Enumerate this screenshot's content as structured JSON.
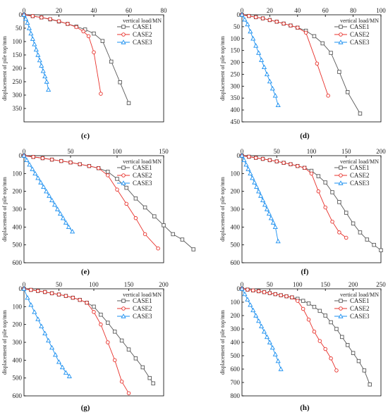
{
  "legend_labels": [
    "CASE1",
    "CASE2",
    "CASE3"
  ],
  "series_colors": [
    "#595959",
    "#e8312b",
    "#1a8ff0"
  ],
  "series_markers": [
    "square",
    "circle",
    "triangle"
  ],
  "chart_data": [
    {
      "type": "line",
      "panel_label": "(c)",
      "xlabel": "vertical load/MN",
      "ylabel": "displacement of pile top/mm",
      "xlim": [
        0,
        80
      ],
      "xticks": [
        0,
        20,
        40,
        60,
        80
      ],
      "ylim": [
        0,
        400
      ],
      "yticks": [
        0,
        50,
        100,
        150,
        200,
        250,
        300,
        350
      ],
      "y_inverted": true,
      "x_axis_position": "top",
      "legend_position": "top-right",
      "series": [
        {
          "name": "CASE1",
          "x": [
            0,
            5,
            10,
            15,
            20,
            25,
            30,
            35,
            40,
            45,
            50,
            55,
            60
          ],
          "y": [
            0,
            5,
            10,
            17,
            25,
            34,
            44,
            55,
            70,
            98,
            175,
            252,
            330
          ]
        },
        {
          "name": "CASE2",
          "x": [
            0,
            5,
            10,
            15,
            20,
            25,
            30,
            34,
            37,
            40,
            44
          ],
          "y": [
            0,
            5,
            10,
            16,
            24,
            34,
            46,
            62,
            80,
            140,
            295
          ]
        },
        {
          "name": "CASE3",
          "x": [
            0,
            1,
            2,
            3,
            4,
            5,
            6,
            7,
            8,
            9,
            10,
            11,
            12,
            13,
            14
          ],
          "y": [
            0,
            15,
            30,
            50,
            70,
            90,
            110,
            130,
            150,
            170,
            190,
            210,
            230,
            250,
            280
          ]
        }
      ]
    },
    {
      "type": "line",
      "panel_label": "(d)",
      "xlabel": "vertical load/MN",
      "ylabel": "displacement of pile top/mm",
      "xlim": [
        0,
        100
      ],
      "xticks": [
        0,
        20,
        40,
        60,
        80,
        100
      ],
      "ylim": [
        0,
        450
      ],
      "yticks": [
        0,
        50,
        100,
        150,
        200,
        250,
        300,
        350,
        400,
        450
      ],
      "y_inverted": true,
      "x_axis_position": "top",
      "legend_position": "top-right",
      "series": [
        {
          "name": "CASE1",
          "x": [
            0,
            5,
            10,
            15,
            20,
            25,
            30,
            35,
            40,
            46,
            52,
            58,
            64,
            70,
            76,
            85
          ],
          "y": [
            0,
            5,
            10,
            15,
            22,
            29,
            37,
            45,
            54,
            67,
            90,
            120,
            160,
            240,
            325,
            415
          ]
        },
        {
          "name": "CASE2",
          "x": [
            0,
            5,
            10,
            15,
            20,
            25,
            30,
            35,
            40,
            46,
            54,
            62
          ],
          "y": [
            0,
            5,
            10,
            15,
            22,
            29,
            37,
            45,
            54,
            75,
            205,
            340
          ]
        },
        {
          "name": "CASE3",
          "x": [
            0,
            2,
            4,
            6,
            8,
            10,
            12,
            14,
            16,
            18,
            20,
            22,
            24,
            26
          ],
          "y": [
            0,
            20,
            40,
            70,
            100,
            130,
            160,
            190,
            220,
            250,
            280,
            310,
            340,
            380
          ]
        }
      ]
    },
    {
      "type": "line",
      "panel_label": "(e)",
      "xlabel": "vertical load/MN",
      "ylabel": "displacement of pile top/mm",
      "xlim": [
        0,
        150
      ],
      "xticks": [
        0,
        50,
        100,
        150
      ],
      "ylim": [
        0,
        600
      ],
      "yticks": [
        0,
        100,
        200,
        300,
        400,
        500,
        600
      ],
      "y_inverted": true,
      "x_axis_position": "top",
      "legend_position": "top-right",
      "series": [
        {
          "name": "CASE1",
          "x": [
            0,
            10,
            20,
            30,
            40,
            50,
            60,
            70,
            80,
            90,
            100,
            110,
            120,
            130,
            140,
            150,
            160,
            170,
            182
          ],
          "y": [
            0,
            7,
            14,
            22,
            30,
            38,
            48,
            58,
            70,
            90,
            130,
            180,
            240,
            290,
            340,
            390,
            440,
            470,
            525
          ]
        },
        {
          "name": "CASE2",
          "x": [
            0,
            10,
            20,
            30,
            40,
            50,
            60,
            70,
            80,
            90,
            100,
            110,
            120,
            130,
            144
          ],
          "y": [
            0,
            7,
            14,
            22,
            30,
            38,
            48,
            58,
            70,
            110,
            190,
            270,
            350,
            440,
            520
          ]
        },
        {
          "name": "CASE3",
          "x": [
            0,
            3,
            6,
            9,
            12,
            15,
            18,
            21,
            24,
            27,
            30,
            33,
            36,
            39,
            42,
            45,
            48,
            52
          ],
          "y": [
            0,
            25,
            50,
            75,
            100,
            125,
            150,
            175,
            200,
            225,
            250,
            275,
            300,
            325,
            350,
            375,
            400,
            425
          ]
        }
      ]
    },
    {
      "type": "line",
      "panel_label": "(f)",
      "xlabel": "vertical load/MN",
      "ylabel": "displacement of pile top/mm",
      "xlim": [
        0,
        200
      ],
      "xticks": [
        0,
        50,
        100,
        150,
        200
      ],
      "ylim": [
        0,
        600
      ],
      "yticks": [
        0,
        100,
        200,
        300,
        400,
        500,
        600
      ],
      "y_inverted": true,
      "x_axis_position": "top",
      "legend_position": "top-right",
      "series": [
        {
          "name": "CASE1",
          "x": [
            0,
            10,
            20,
            30,
            40,
            50,
            60,
            70,
            80,
            90,
            100,
            110,
            120,
            130,
            140,
            150,
            160,
            170,
            180,
            190,
            200
          ],
          "y": [
            0,
            6,
            12,
            18,
            25,
            32,
            40,
            48,
            58,
            68,
            85,
            115,
            150,
            205,
            260,
            320,
            380,
            430,
            470,
            500,
            530
          ]
        },
        {
          "name": "CASE2",
          "x": [
            0,
            10,
            20,
            30,
            40,
            50,
            60,
            70,
            80,
            90,
            100,
            110,
            120,
            130,
            140,
            150
          ],
          "y": [
            0,
            6,
            12,
            18,
            25,
            32,
            40,
            48,
            58,
            68,
            100,
            200,
            290,
            370,
            430,
            460
          ]
        },
        {
          "name": "CASE3",
          "x": [
            0,
            3,
            6,
            9,
            12,
            15,
            18,
            21,
            24,
            27,
            30,
            33,
            36,
            39,
            42,
            45,
            48,
            52
          ],
          "y": [
            0,
            25,
            50,
            75,
            100,
            125,
            150,
            175,
            200,
            225,
            250,
            275,
            300,
            325,
            350,
            375,
            400,
            480
          ]
        }
      ]
    },
    {
      "type": "line",
      "panel_label": "(g)",
      "xlabel": "vertical load/MN",
      "ylabel": "displacement of pile top/mm",
      "xlim": [
        0,
        200
      ],
      "xticks": [
        0,
        50,
        100,
        150,
        200
      ],
      "ylim": [
        0,
        600
      ],
      "yticks": [
        0,
        100,
        200,
        300,
        400,
        500,
        600
      ],
      "y_inverted": true,
      "x_axis_position": "top",
      "legend_position": "top-right",
      "series": [
        {
          "name": "CASE1",
          "x": [
            0,
            10,
            20,
            30,
            40,
            50,
            60,
            70,
            80,
            90,
            100,
            110,
            120,
            130,
            140,
            150,
            160,
            170,
            180,
            185
          ],
          "y": [
            0,
            6,
            12,
            18,
            25,
            32,
            40,
            50,
            62,
            78,
            100,
            145,
            190,
            240,
            290,
            340,
            390,
            440,
            500,
            530
          ]
        },
        {
          "name": "CASE2",
          "x": [
            0,
            10,
            20,
            30,
            40,
            50,
            60,
            70,
            80,
            90,
            100,
            110,
            120,
            130,
            140,
            150
          ],
          "y": [
            0,
            6,
            12,
            18,
            25,
            32,
            40,
            50,
            62,
            78,
            130,
            200,
            300,
            400,
            520,
            585
          ]
        },
        {
          "name": "CASE3",
          "x": [
            0,
            5,
            10,
            15,
            20,
            25,
            30,
            35,
            40,
            45,
            50,
            55,
            60,
            65
          ],
          "y": [
            0,
            50,
            90,
            130,
            170,
            210,
            250,
            290,
            330,
            370,
            410,
            440,
            470,
            490
          ]
        }
      ]
    },
    {
      "type": "line",
      "panel_label": "(h)",
      "xlabel": "vertical load/MN",
      "ylabel": "displacement of pile top/mm",
      "xlim": [
        0,
        250
      ],
      "xticks": [
        0,
        50,
        100,
        150,
        200,
        250
      ],
      "ylim": [
        0,
        800
      ],
      "yticks": [
        0,
        100,
        200,
        300,
        400,
        500,
        600,
        700,
        800
      ],
      "y_inverted": true,
      "x_axis_position": "top",
      "legend_position": "top-right",
      "series": [
        {
          "name": "CASE1",
          "x": [
            0,
            10,
            20,
            30,
            40,
            50,
            60,
            70,
            80,
            90,
            100,
            110,
            120,
            130,
            140,
            150,
            160,
            170,
            180,
            190,
            200,
            210,
            220,
            230
          ],
          "y": [
            0,
            6,
            12,
            18,
            25,
            32,
            40,
            48,
            56,
            64,
            75,
            90,
            110,
            135,
            165,
            200,
            250,
            300,
            360,
            420,
            480,
            540,
            610,
            715
          ]
        },
        {
          "name": "CASE2",
          "x": [
            0,
            10,
            20,
            30,
            40,
            50,
            60,
            70,
            80,
            90,
            100,
            110,
            120,
            130,
            140,
            150,
            160,
            170
          ],
          "y": [
            0,
            6,
            12,
            18,
            25,
            32,
            40,
            48,
            56,
            64,
            90,
            150,
            230,
            320,
            390,
            450,
            520,
            610
          ]
        },
        {
          "name": "CASE3",
          "x": [
            0,
            5,
            10,
            15,
            20,
            25,
            30,
            35,
            40,
            45,
            50,
            55,
            60,
            65,
            70
          ],
          "y": [
            0,
            40,
            80,
            120,
            160,
            200,
            240,
            280,
            320,
            360,
            400,
            440,
            490,
            540,
            600
          ]
        }
      ]
    }
  ]
}
